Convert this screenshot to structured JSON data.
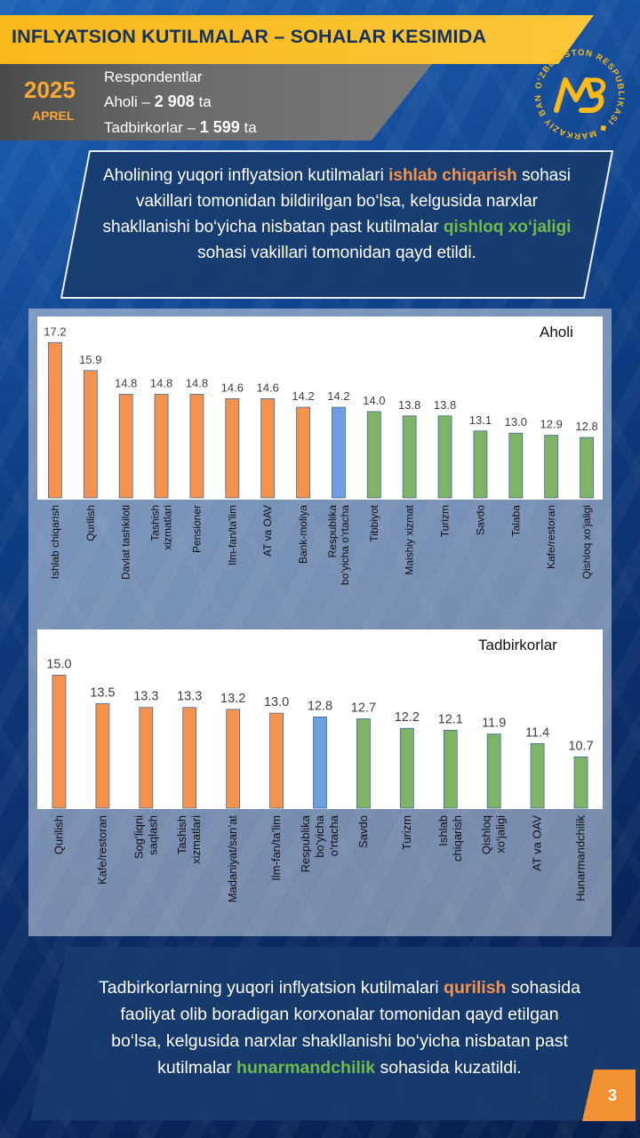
{
  "header": {
    "title": "INFLYATSION KUTILMALAR – SOHALAR KESIMIDA",
    "year": "2025",
    "month": "APREL",
    "respondents_label": "Respondentlar",
    "aholi_prefix": "Aholi – ",
    "aholi_count": "2 908",
    "aholi_suffix": " ta",
    "tadbirkor_prefix": "Tadbirkorlar – ",
    "tadbirkor_count": "1 599",
    "tadbirkor_suffix": " ta"
  },
  "logo": {
    "ring_text": "O‘ZBEKISTON RESPUBLIKASI ◆ MARKAZIY BANKI ◆",
    "icon": "central-bank-logo-icon"
  },
  "callout_top": {
    "p1": "Aholining yuqori inflyatsion kutilmalari ",
    "h1": "ishlab chiqarish",
    "p2": " sohasi vakillari tomonidan bildirilgan bo‘lsa, kelgusida narxlar shakllanishi bo‘yicha nisbatan past kutilmalar ",
    "h2": "qishloq xo‘jaligi",
    "p3": " sohasi vakillari tomonidan qayd etildi."
  },
  "callout_bottom": {
    "p1": "Tadbirkorlarning yuqori inflyatsion kutilmalari ",
    "h1": "qurilish",
    "p2": " sohasida faoliyat olib boradigan korxonalar tomonidan qayd etilgan bo‘lsa, kelgusida narxlar shakllanishi bo‘yicha nisbatan past kutilmalar ",
    "h2": "hunarmandchilik",
    "p3": " sohasida kuzatildi."
  },
  "page_number": "3",
  "colors": {
    "orange": "#f5924c",
    "blue": "#6d9fdc",
    "green": "#7fb366",
    "gold": "#f8b91a"
  },
  "chart_data": [
    {
      "type": "bar",
      "name": "Aholi",
      "categories": [
        "Ishlab chiqarish",
        "Qurilish",
        "Davlat tashkiloti",
        "Tashish xizmatlari",
        "Pensioner",
        "Ilm-fan/ta’lim",
        "AT va OAV",
        "Bank-moliya",
        "Respublika bo‘yicha o‘rtacha",
        "Tibbiyot",
        "Maishiy xizmat",
        "Turizm",
        "Savdo",
        "Talaba",
        "Kafe/restoran",
        "Qishloq xo‘jaligi"
      ],
      "values": [
        17.2,
        15.9,
        14.8,
        14.8,
        14.8,
        14.6,
        14.6,
        14.2,
        14.2,
        14.0,
        13.8,
        13.8,
        13.1,
        13.0,
        12.9,
        12.8
      ],
      "value_labels": [
        "17.2",
        "15.9",
        "14.8",
        "14.8",
        "14.8",
        "14.6",
        "14.6",
        "14.2",
        "14.2",
        "14.0",
        "13.8",
        "13.8",
        "13.1",
        "13.0",
        "12.9",
        "12.8"
      ],
      "bar_colors": [
        "orange",
        "orange",
        "orange",
        "orange",
        "orange",
        "orange",
        "orange",
        "orange",
        "blue",
        "green",
        "green",
        "green",
        "green",
        "green",
        "green",
        "green"
      ],
      "ylim": [
        10,
        17.5
      ]
    },
    {
      "type": "bar",
      "name": "Tadbirkorlar",
      "categories": [
        "Qurilish",
        "Kafe/restoran",
        "Sog‘liqni saqlash",
        "Tashish xizmatlari",
        "Madaniyat/san’at",
        "Ilm-fan/ta’lim",
        "Respublika bo‘yicha o‘rtacha",
        "Savdo",
        "Turizm",
        "Ishlab chiqarish",
        "Qishloq xo‘jaligi",
        "AT va OAV",
        "Hunarmandchilik"
      ],
      "values": [
        15.0,
        13.5,
        13.3,
        13.3,
        13.2,
        13.0,
        12.8,
        12.7,
        12.2,
        12.1,
        11.9,
        11.4,
        10.7
      ],
      "value_labels": [
        "15.0",
        "13.5",
        "13.3",
        "13.3",
        "13.2",
        "13.0",
        "12.8",
        "12.7",
        "12.2",
        "12.1",
        "11.9",
        "11.4",
        "10.7"
      ],
      "bar_colors": [
        "orange",
        "orange",
        "orange",
        "orange",
        "orange",
        "orange",
        "blue",
        "green",
        "green",
        "green",
        "green",
        "green",
        "green"
      ],
      "ylim": [
        8,
        15.3
      ]
    }
  ]
}
